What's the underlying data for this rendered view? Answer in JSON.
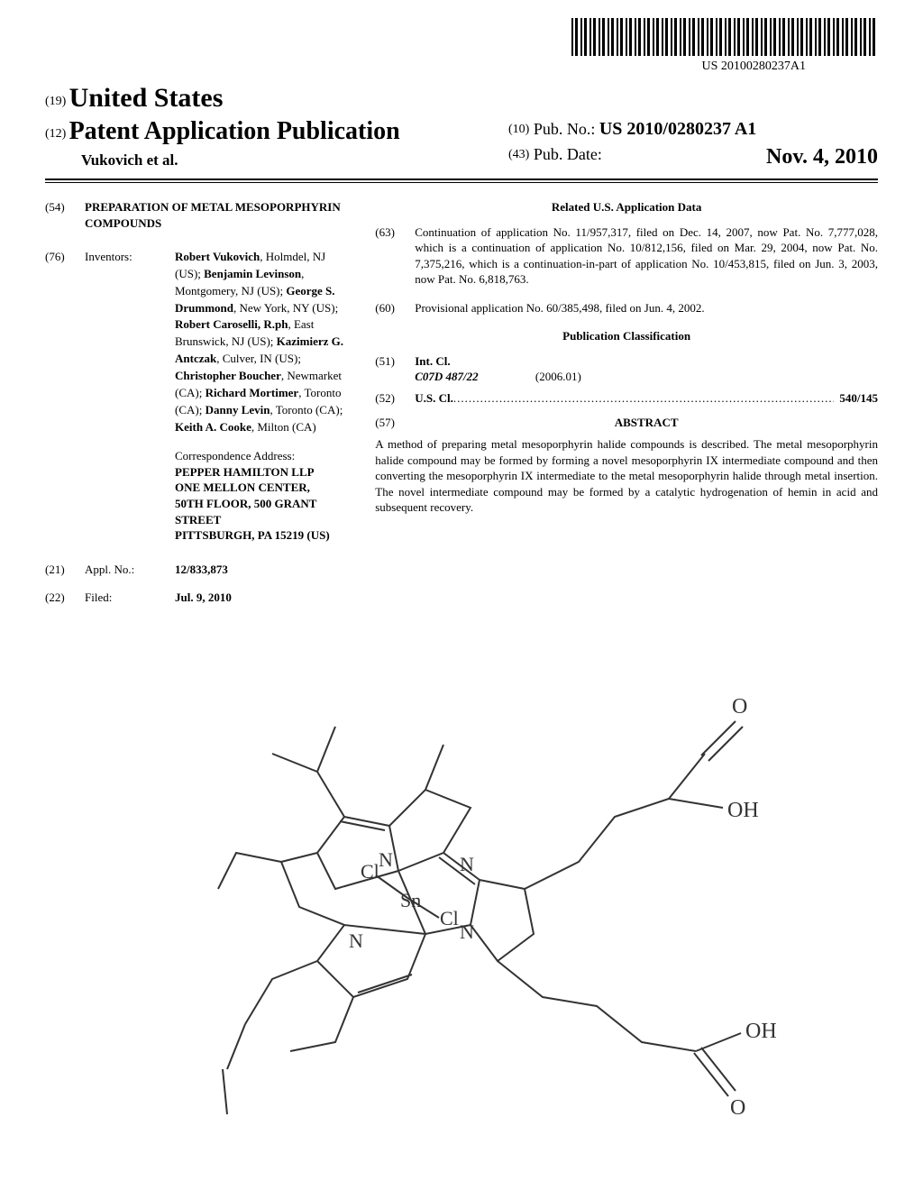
{
  "barcode_label": "US 20100280237A1",
  "header": {
    "country_code": "(19)",
    "country": "United States",
    "pub_code": "(12)",
    "pub_type": "Patent Application Publication",
    "authors_short": "Vukovich et al.",
    "pub_no_code": "(10)",
    "pub_no_label": "Pub. No.:",
    "pub_no": "US 2010/0280237 A1",
    "pub_date_code": "(43)",
    "pub_date_label": "Pub. Date:",
    "pub_date": "Nov. 4, 2010"
  },
  "title": {
    "code": "(54)",
    "text": "PREPARATION OF METAL MESOPORPHYRIN COMPOUNDS"
  },
  "inventors": {
    "code": "(76)",
    "label": "Inventors:",
    "list": [
      {
        "name": "Robert Vukovich",
        "loc": "Holmdel, NJ (US)"
      },
      {
        "name": "Benjamin Levinson",
        "loc": "Montgomery, NJ (US)"
      },
      {
        "name": "George S. Drummond",
        "loc": "New York, NY (US)"
      },
      {
        "name": "Robert Caroselli, R.ph",
        "loc": "East Brunswick, NJ (US)"
      },
      {
        "name": "Kazimierz G. Antczak",
        "loc": "Culver, IN (US)"
      },
      {
        "name": "Christopher Boucher",
        "loc": "Newmarket (CA)"
      },
      {
        "name": "Richard Mortimer",
        "loc": "Toronto (CA)"
      },
      {
        "name": "Danny Levin",
        "loc": "Toronto (CA)"
      },
      {
        "name": "Keith A. Cooke",
        "loc": "Milton (CA)"
      }
    ]
  },
  "correspondence": {
    "label": "Correspondence Address:",
    "name": "PEPPER HAMILTON LLP",
    "addr1": "ONE MELLON CENTER, 50TH FLOOR, 500 GRANT STREET",
    "addr2": "PITTSBURGH, PA 15219 (US)"
  },
  "appl": {
    "code": "(21)",
    "label": "Appl. No.:",
    "value": "12/833,873"
  },
  "filed": {
    "code": "(22)",
    "label": "Filed:",
    "value": "Jul. 9, 2010"
  },
  "related": {
    "heading": "Related U.S. Application Data",
    "items": [
      {
        "code": "(63)",
        "text": "Continuation of application No. 11/957,317, filed on Dec. 14, 2007, now Pat. No. 7,777,028, which is a continuation of application No. 10/812,156, filed on Mar. 29, 2004, now Pat. No. 7,375,216, which is a continuation-in-part of application No. 10/453,815, filed on Jun. 3, 2003, now Pat. No. 6,818,763."
      },
      {
        "code": "(60)",
        "text": "Provisional application No. 60/385,498, filed on Jun. 4, 2002."
      }
    ]
  },
  "classification": {
    "heading": "Publication Classification",
    "intcl_code": "(51)",
    "intcl_label": "Int. Cl.",
    "intcl_class": "C07D 487/22",
    "intcl_date": "(2006.01)",
    "uscl_code": "(52)",
    "uscl_label": "U.S. Cl.",
    "uscl_value": "540/145"
  },
  "abstract": {
    "code": "(57)",
    "heading": "ABSTRACT",
    "text": "A method of preparing metal mesoporphyrin halide compounds is described. The metal mesoporphyrin halide compound may be formed by forming a novel mesoporphyrin IX intermediate compound and then converting the mesoporphyrin IX intermediate to the metal mesoporphyrin halide through metal insertion. The novel intermediate compound may be formed by a catalytic hydrogenation of hemin in acid and subsequent recovery."
  },
  "figure_labels": {
    "Sn": "Sn",
    "Cl1": "Cl",
    "Cl2": "Cl",
    "N1": "N",
    "N2": "N",
    "N3": "N",
    "N4": "N",
    "OH1": "OH",
    "OH2": "OH",
    "O1": "O",
    "O2": "O"
  }
}
